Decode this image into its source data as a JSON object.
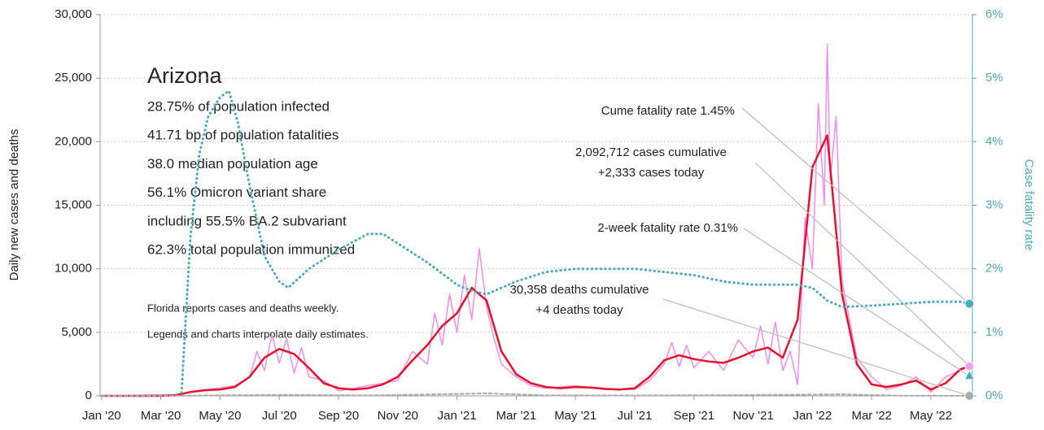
{
  "chart_data": {
    "type": "line",
    "y_label": "Daily new cases and deaths",
    "y2_label": "Case fatality rate",
    "xlim": [
      -0.05,
      29.4
    ],
    "xticks": [
      {
        "value": 0,
        "label": "Jan '20"
      },
      {
        "value": 2,
        "label": "Mar '20"
      },
      {
        "value": 4,
        "label": "May '20"
      },
      {
        "value": 6,
        "label": "Jul '20"
      },
      {
        "value": 8,
        "label": "Sep '20"
      },
      {
        "value": 10,
        "label": "Nov '20"
      },
      {
        "value": 12,
        "label": "Jan '21"
      },
      {
        "value": 14,
        "label": "Mar '21"
      },
      {
        "value": 16,
        "label": "May '21"
      },
      {
        "value": 18,
        "label": "Jul '21"
      },
      {
        "value": 20,
        "label": "Sep '21"
      },
      {
        "value": 22,
        "label": "Nov '21"
      },
      {
        "value": 24,
        "label": "Jan '22"
      },
      {
        "value": 26,
        "label": "Mar '22"
      },
      {
        "value": 28,
        "label": "May '22"
      }
    ],
    "ylim": [
      0,
      30000
    ],
    "yticks": [
      0,
      {
        "value": 5000,
        "label": "5,000"
      },
      {
        "value": 10000,
        "label": "10,000"
      },
      {
        "value": 15000,
        "label": "15,000"
      },
      {
        "value": 20000,
        "label": "20,000"
      },
      {
        "value": 25000,
        "label": "25,000"
      },
      {
        "value": 30000,
        "label": "30,000"
      }
    ],
    "y2lim": [
      0,
      6
    ],
    "y2ticks": [
      {
        "value": 0,
        "label": "0%"
      },
      {
        "value": 1,
        "label": "1%"
      },
      {
        "value": 2,
        "label": "2%"
      },
      {
        "value": 3,
        "label": "3%"
      },
      {
        "value": 4,
        "label": "4%"
      },
      {
        "value": 5,
        "label": "5%"
      },
      {
        "value": 6,
        "label": "6%"
      }
    ],
    "grid": true,
    "series": [
      {
        "color": "#f28cf0",
        "width": 1.5,
        "style": "solid",
        "x": [
          0,
          2.5,
          4.5,
          5,
          5.25,
          5.5,
          5.75,
          6,
          6.25,
          6.5,
          6.75,
          7,
          7.5,
          8,
          9,
          10,
          10.5,
          11,
          11.25,
          11.5,
          11.75,
          12,
          12.25,
          12.5,
          12.75,
          13,
          13.25,
          13.5,
          14,
          14.5,
          15,
          16,
          17,
          18,
          18.5,
          19,
          19.25,
          19.5,
          19.75,
          20,
          20.5,
          21,
          21.5,
          22,
          22.25,
          22.5,
          22.75,
          23,
          23.25,
          23.5,
          23.75,
          24,
          24.2,
          24.4,
          24.5,
          24.6,
          24.8,
          25,
          25.25,
          25.5,
          26,
          26.5,
          27,
          27.5,
          28,
          28.5,
          29,
          29.3
        ],
        "values": [
          0,
          100,
          800,
          1500,
          3500,
          2000,
          4800,
          2600,
          4500,
          1800,
          3800,
          1500,
          1200,
          400,
          800,
          1200,
          3500,
          2500,
          6500,
          4000,
          8000,
          5000,
          9500,
          6000,
          11600,
          7000,
          4500,
          2500,
          1500,
          800,
          600,
          800,
          500,
          500,
          1200,
          2500,
          4200,
          2300,
          4000,
          2200,
          3500,
          2000,
          4400,
          3000,
          5500,
          2500,
          5800,
          2000,
          3500,
          900,
          14000,
          10000,
          23000,
          15000,
          27700,
          17000,
          22000,
          9000,
          6000,
          3000,
          1500,
          500,
          800,
          1500,
          300,
          1500,
          2000,
          2300
        ]
      },
      {
        "color": "#e8102a",
        "width": 2.5,
        "style": "solid",
        "x": [
          0,
          0.5,
          1,
          1.5,
          2,
          2.5,
          3,
          3.5,
          4,
          4.5,
          5,
          5.5,
          6,
          6.5,
          7,
          7.5,
          8,
          8.5,
          9,
          9.5,
          10,
          10.5,
          11,
          11.5,
          12,
          12.5,
          13,
          13.5,
          14,
          14.5,
          15,
          15.5,
          16,
          16.5,
          17,
          17.5,
          18,
          18.5,
          19,
          19.5,
          20,
          20.5,
          21,
          21.5,
          22,
          22.5,
          23,
          23.5,
          24,
          24.5,
          25,
          25.5,
          26,
          26.5,
          27,
          27.5,
          28,
          28.5,
          29,
          29.3
        ],
        "values": [
          0,
          0,
          0,
          0,
          0,
          50,
          300,
          450,
          500,
          700,
          1500,
          3000,
          3700,
          3300,
          2200,
          1000,
          600,
          500,
          600,
          900,
          1500,
          2800,
          4000,
          5500,
          6500,
          8500,
          7500,
          3500,
          1700,
          1000,
          700,
          600,
          700,
          650,
          550,
          500,
          600,
          1500,
          2800,
          3200,
          2900,
          2700,
          2600,
          3000,
          3500,
          3800,
          3000,
          6000,
          18000,
          20500,
          8000,
          2500,
          900,
          700,
          900,
          1200,
          500,
          1000,
          2100,
          2333
        ]
      },
      {
        "color": "#aaaaaa",
        "width": 2,
        "style": "dashed",
        "x": [
          0,
          3,
          6,
          9,
          12,
          13,
          15,
          18,
          21,
          24,
          25,
          27,
          29.3
        ],
        "values": [
          0,
          20,
          80,
          30,
          150,
          200,
          40,
          30,
          60,
          100,
          120,
          20,
          4
        ]
      },
      {
        "color": "#4aabbd",
        "width": 3,
        "style": "dotted",
        "axis": "y2",
        "x": [
          2.7,
          3,
          3.3,
          3.6,
          4,
          4.3,
          4.6,
          5,
          5.5,
          6,
          6.3,
          7,
          8,
          9,
          9.5,
          10,
          11,
          12,
          12.5,
          13,
          14,
          15,
          16,
          17,
          18,
          19,
          20,
          21,
          22,
          23,
          23.5,
          24,
          24.5,
          25,
          26,
          27,
          28,
          29,
          29.3
        ],
        "values": [
          0.05,
          2.5,
          3.8,
          4.4,
          4.7,
          4.8,
          4.3,
          3.3,
          2.2,
          1.8,
          1.7,
          2.0,
          2.3,
          2.55,
          2.55,
          2.4,
          2.1,
          1.75,
          1.65,
          1.6,
          1.8,
          1.95,
          2.0,
          2.0,
          2.0,
          1.95,
          1.9,
          1.8,
          1.75,
          1.75,
          1.75,
          1.7,
          1.5,
          1.4,
          1.42,
          1.45,
          1.48,
          1.48,
          1.45
        ]
      }
    ],
    "markers": [
      {
        "x": 29.3,
        "value": 1.45,
        "axis": "y2",
        "shape": "circle",
        "color": "#4aabbd"
      },
      {
        "x": 29.3,
        "value": 2333,
        "shape": "circle",
        "color": "#f7a0f0"
      },
      {
        "x": 29.3,
        "value": 0.31,
        "axis": "y2",
        "shape": "triangle",
        "color": "#4aabbd"
      },
      {
        "x": 29.3,
        "value": 4,
        "shape": "circle",
        "color": "#aaaaaa"
      }
    ],
    "annotations": [
      {
        "lines": [
          "Cume fatality rate 1.45%"
        ],
        "marker": 0
      },
      {
        "lines": [
          "2,092,712 cases cumulative",
          "+2,333 cases today"
        ],
        "marker": 1
      },
      {
        "lines": [
          "2-week fatality rate 0.31%"
        ],
        "marker": 2
      },
      {
        "lines": [
          "30,358 deaths cumulative",
          "+4 deaths today"
        ],
        "marker": 3
      }
    ],
    "info": {
      "title": "Arizona",
      "lines": [
        "28.75% of population infected",
        "41.71 bp of population fatalities",
        "38.0 median population age",
        "56.1% Omicron variant share",
        "including 55.5% BA.2 subvariant",
        "62.3% total population immunized"
      ],
      "notes": [
        "Florida reports cases and deaths weekly.",
        "Legends and charts interpolate daily estimates."
      ]
    }
  }
}
